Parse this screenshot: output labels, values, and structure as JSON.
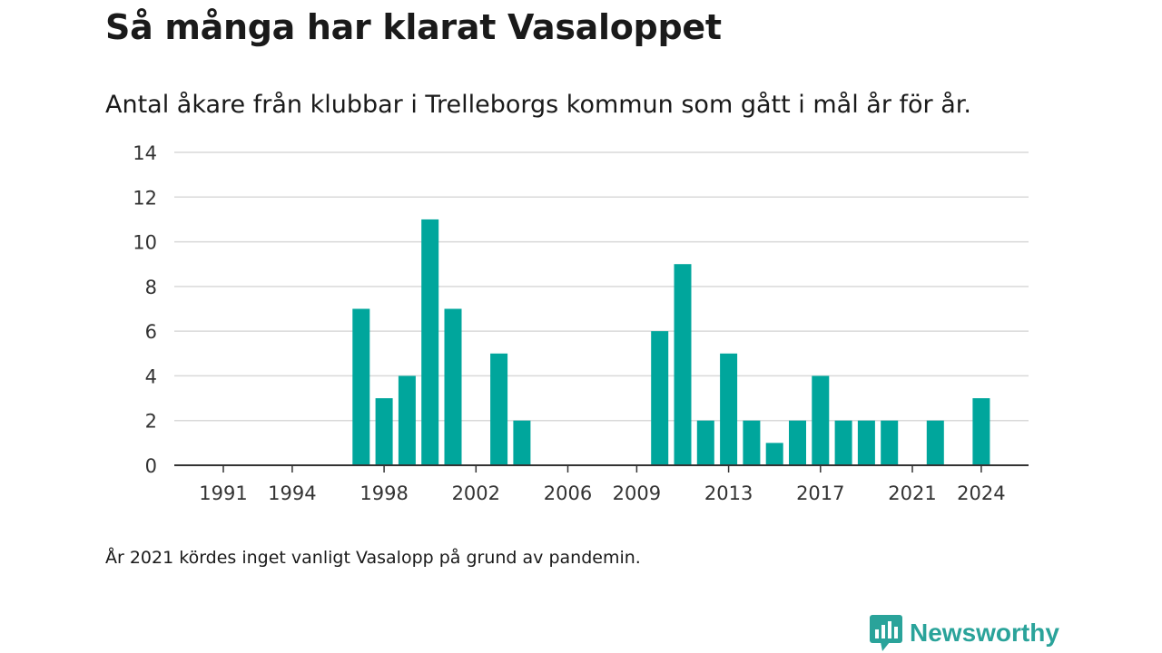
{
  "header": {
    "title": "Så många har klarat Vasaloppet",
    "subtitle": "Antal åkare från klubbar i Trelleborgs kommun som gått i mål år för år."
  },
  "footer": {
    "note": "År 2021 kördes inget vanligt Vasalopp på grund av pandemin.",
    "brand": "Newsworthy"
  },
  "colors": {
    "bar": "#00a69c",
    "grid": "#d9d9d9",
    "axis": "#333333",
    "brand": "#2aa39a"
  },
  "chart_data": {
    "type": "bar",
    "title": "",
    "xlabel": "",
    "ylabel": "",
    "x": [
      1991,
      1992,
      1993,
      1994,
      1995,
      1996,
      1997,
      1998,
      1999,
      2000,
      2001,
      2002,
      2003,
      2004,
      2005,
      2006,
      2007,
      2008,
      2009,
      2010,
      2011,
      2012,
      2013,
      2014,
      2015,
      2016,
      2017,
      2018,
      2019,
      2020,
      2021,
      2022,
      2023,
      2024
    ],
    "values": [
      0,
      0,
      0,
      0,
      0,
      0,
      7,
      3,
      4,
      11,
      7,
      0,
      5,
      2,
      0,
      0,
      0,
      0,
      0,
      6,
      9,
      2,
      5,
      2,
      1,
      2,
      4,
      2,
      2,
      2,
      0,
      2,
      0,
      3
    ],
    "xticks": [
      "1991",
      "1994",
      "1998",
      "2002",
      "2006",
      "2009",
      "2013",
      "2017",
      "2021",
      "2024"
    ],
    "yticks": [
      0,
      2,
      4,
      6,
      8,
      10,
      12,
      14
    ],
    "ylim": [
      0,
      14
    ],
    "grid": true,
    "legend": "none"
  }
}
